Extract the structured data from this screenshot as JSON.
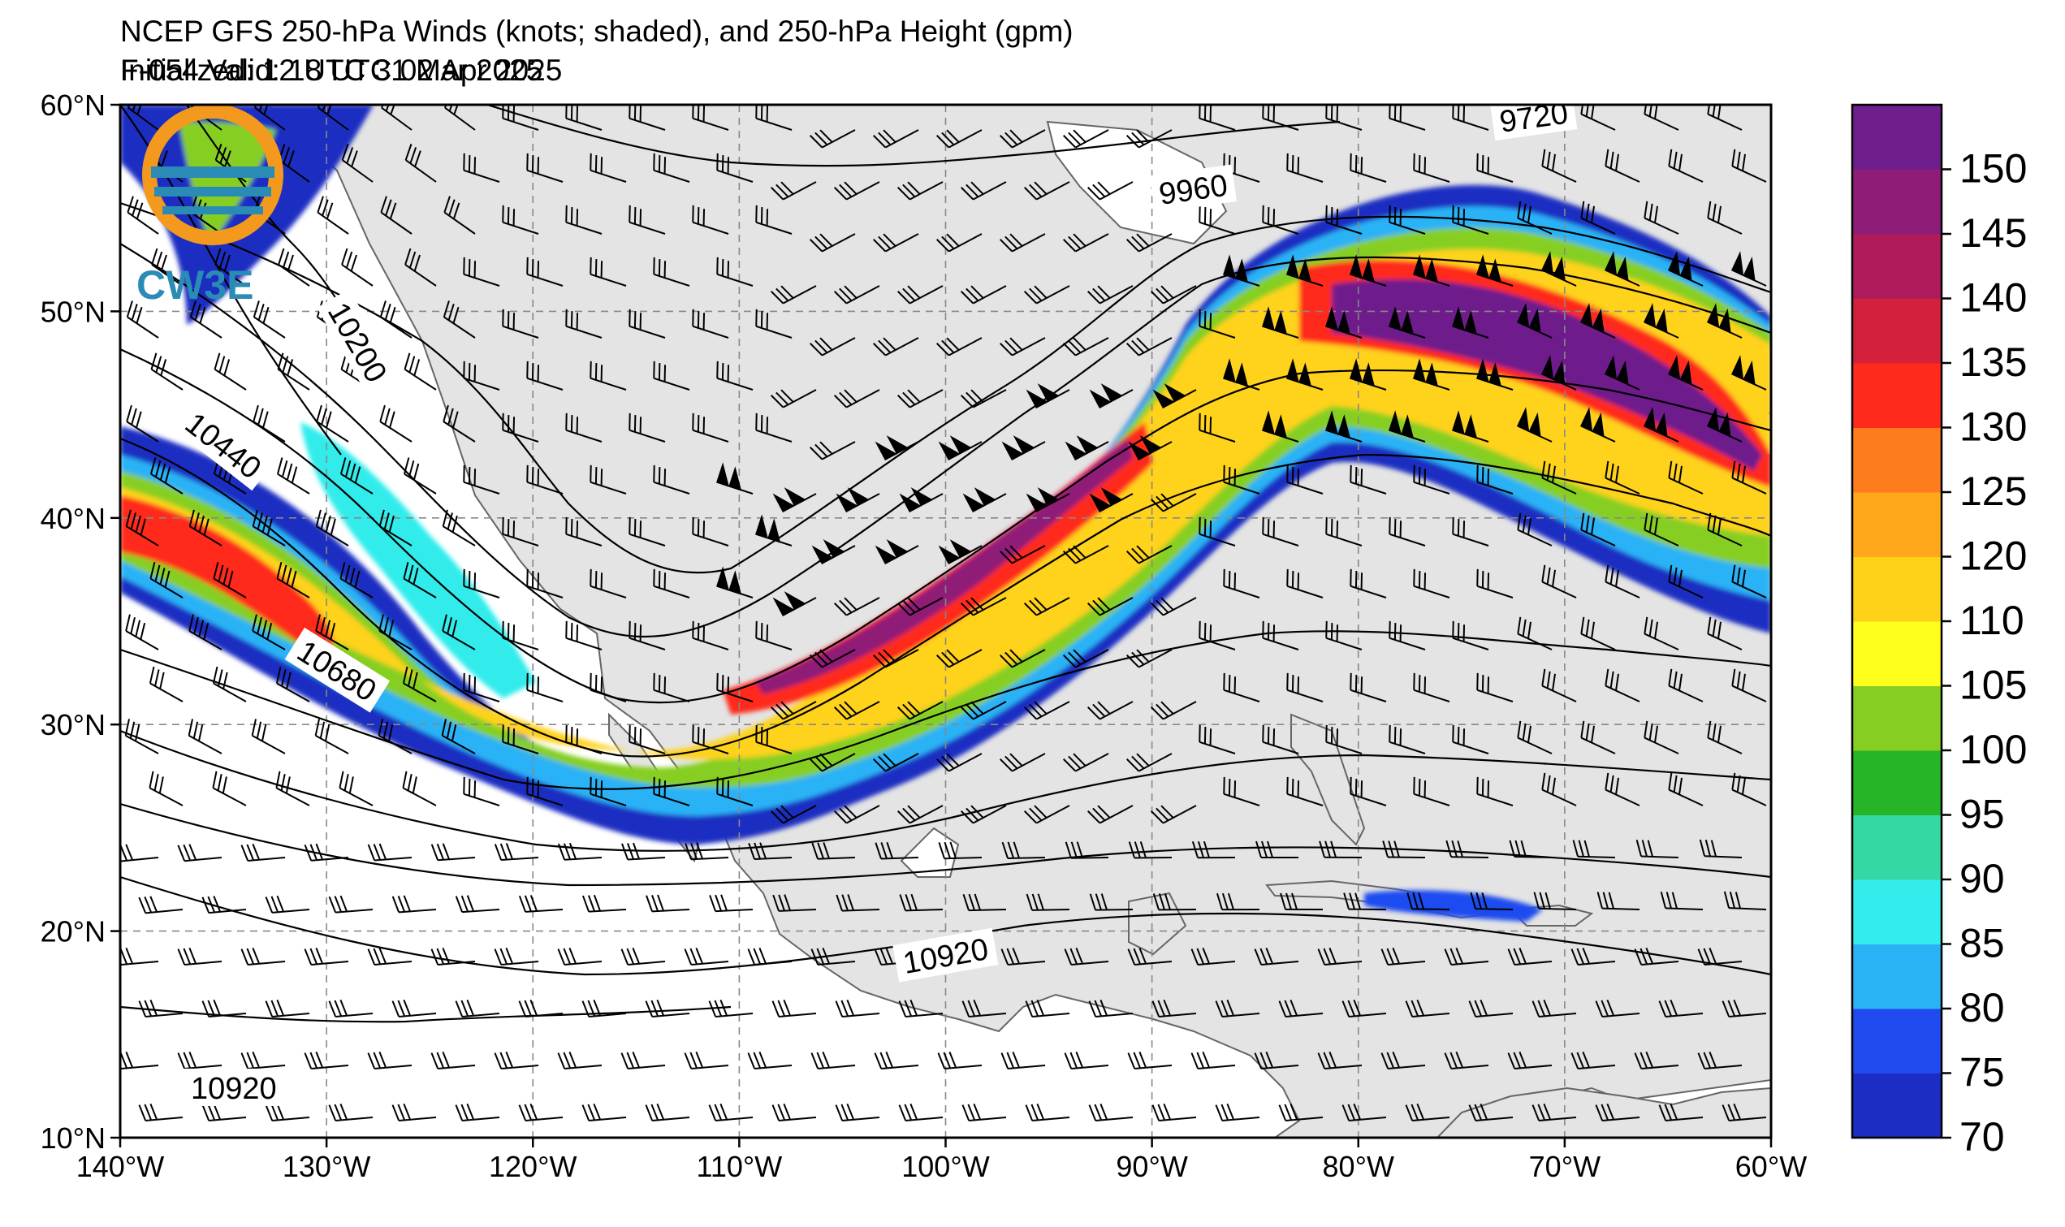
{
  "header": {
    "title": "NCEP GFS 250-hPa Winds (knots; shaded), and 250-hPa Height (gpm)",
    "initialized": "Initialized: 12 UTC 31 Mar 2025",
    "valid": "F-054  Valid: 18 UTC 02 Apr 2025"
  },
  "logo": {
    "text": "CW3E",
    "colors": {
      "orange": "#f39a1e",
      "teal": "#2a8cb5"
    }
  },
  "map": {
    "lat_labels": [
      "60°N",
      "50°N",
      "40°N",
      "30°N",
      "20°N",
      "10°N"
    ],
    "lon_labels": [
      "140°W",
      "130°W",
      "120°W",
      "110°W",
      "100°W",
      "90°W",
      "80°W",
      "70°W",
      "60°W"
    ],
    "lat_range": [
      10,
      60
    ],
    "lon_range": [
      -140,
      -60
    ],
    "grid": true,
    "land_color": "#e4e4e4",
    "height_labels": [
      {
        "text": "9720",
        "lon": -71.5,
        "lat": 59.4,
        "angle": -8
      },
      {
        "text": "9960",
        "lon": -88,
        "lat": 55.9,
        "angle": -8
      },
      {
        "text": "10200",
        "lon": -128.5,
        "lat": 48.5,
        "angle": 60
      },
      {
        "text": "10440",
        "lon": -135,
        "lat": 43.5,
        "angle": 38
      },
      {
        "text": "10680",
        "lon": -129.5,
        "lat": 32.6,
        "angle": 32
      },
      {
        "text": "10920",
        "lon": -100,
        "lat": 18.8,
        "angle": -10
      },
      {
        "text": "10920",
        "lon": -134.5,
        "lat": 12.4,
        "angle": 0
      }
    ]
  },
  "colorbar": {
    "ticks": [
      "150",
      "145",
      "140",
      "135",
      "130",
      "125",
      "120",
      "110",
      "105",
      "100",
      "95",
      "90",
      "85",
      "80",
      "75",
      "70"
    ],
    "colors": [
      "#1b2dc2",
      "#1f4bf0",
      "#2ab2f6",
      "#33ecec",
      "#34d8a4",
      "#26b526",
      "#86cf22",
      "#ffff1e",
      "#ffd21a",
      "#ffa81c",
      "#fd7c1d",
      "#ff2a1c",
      "#d3203b",
      "#b01b5c",
      "#8f1c77",
      "#6e1f8c"
    ]
  }
}
